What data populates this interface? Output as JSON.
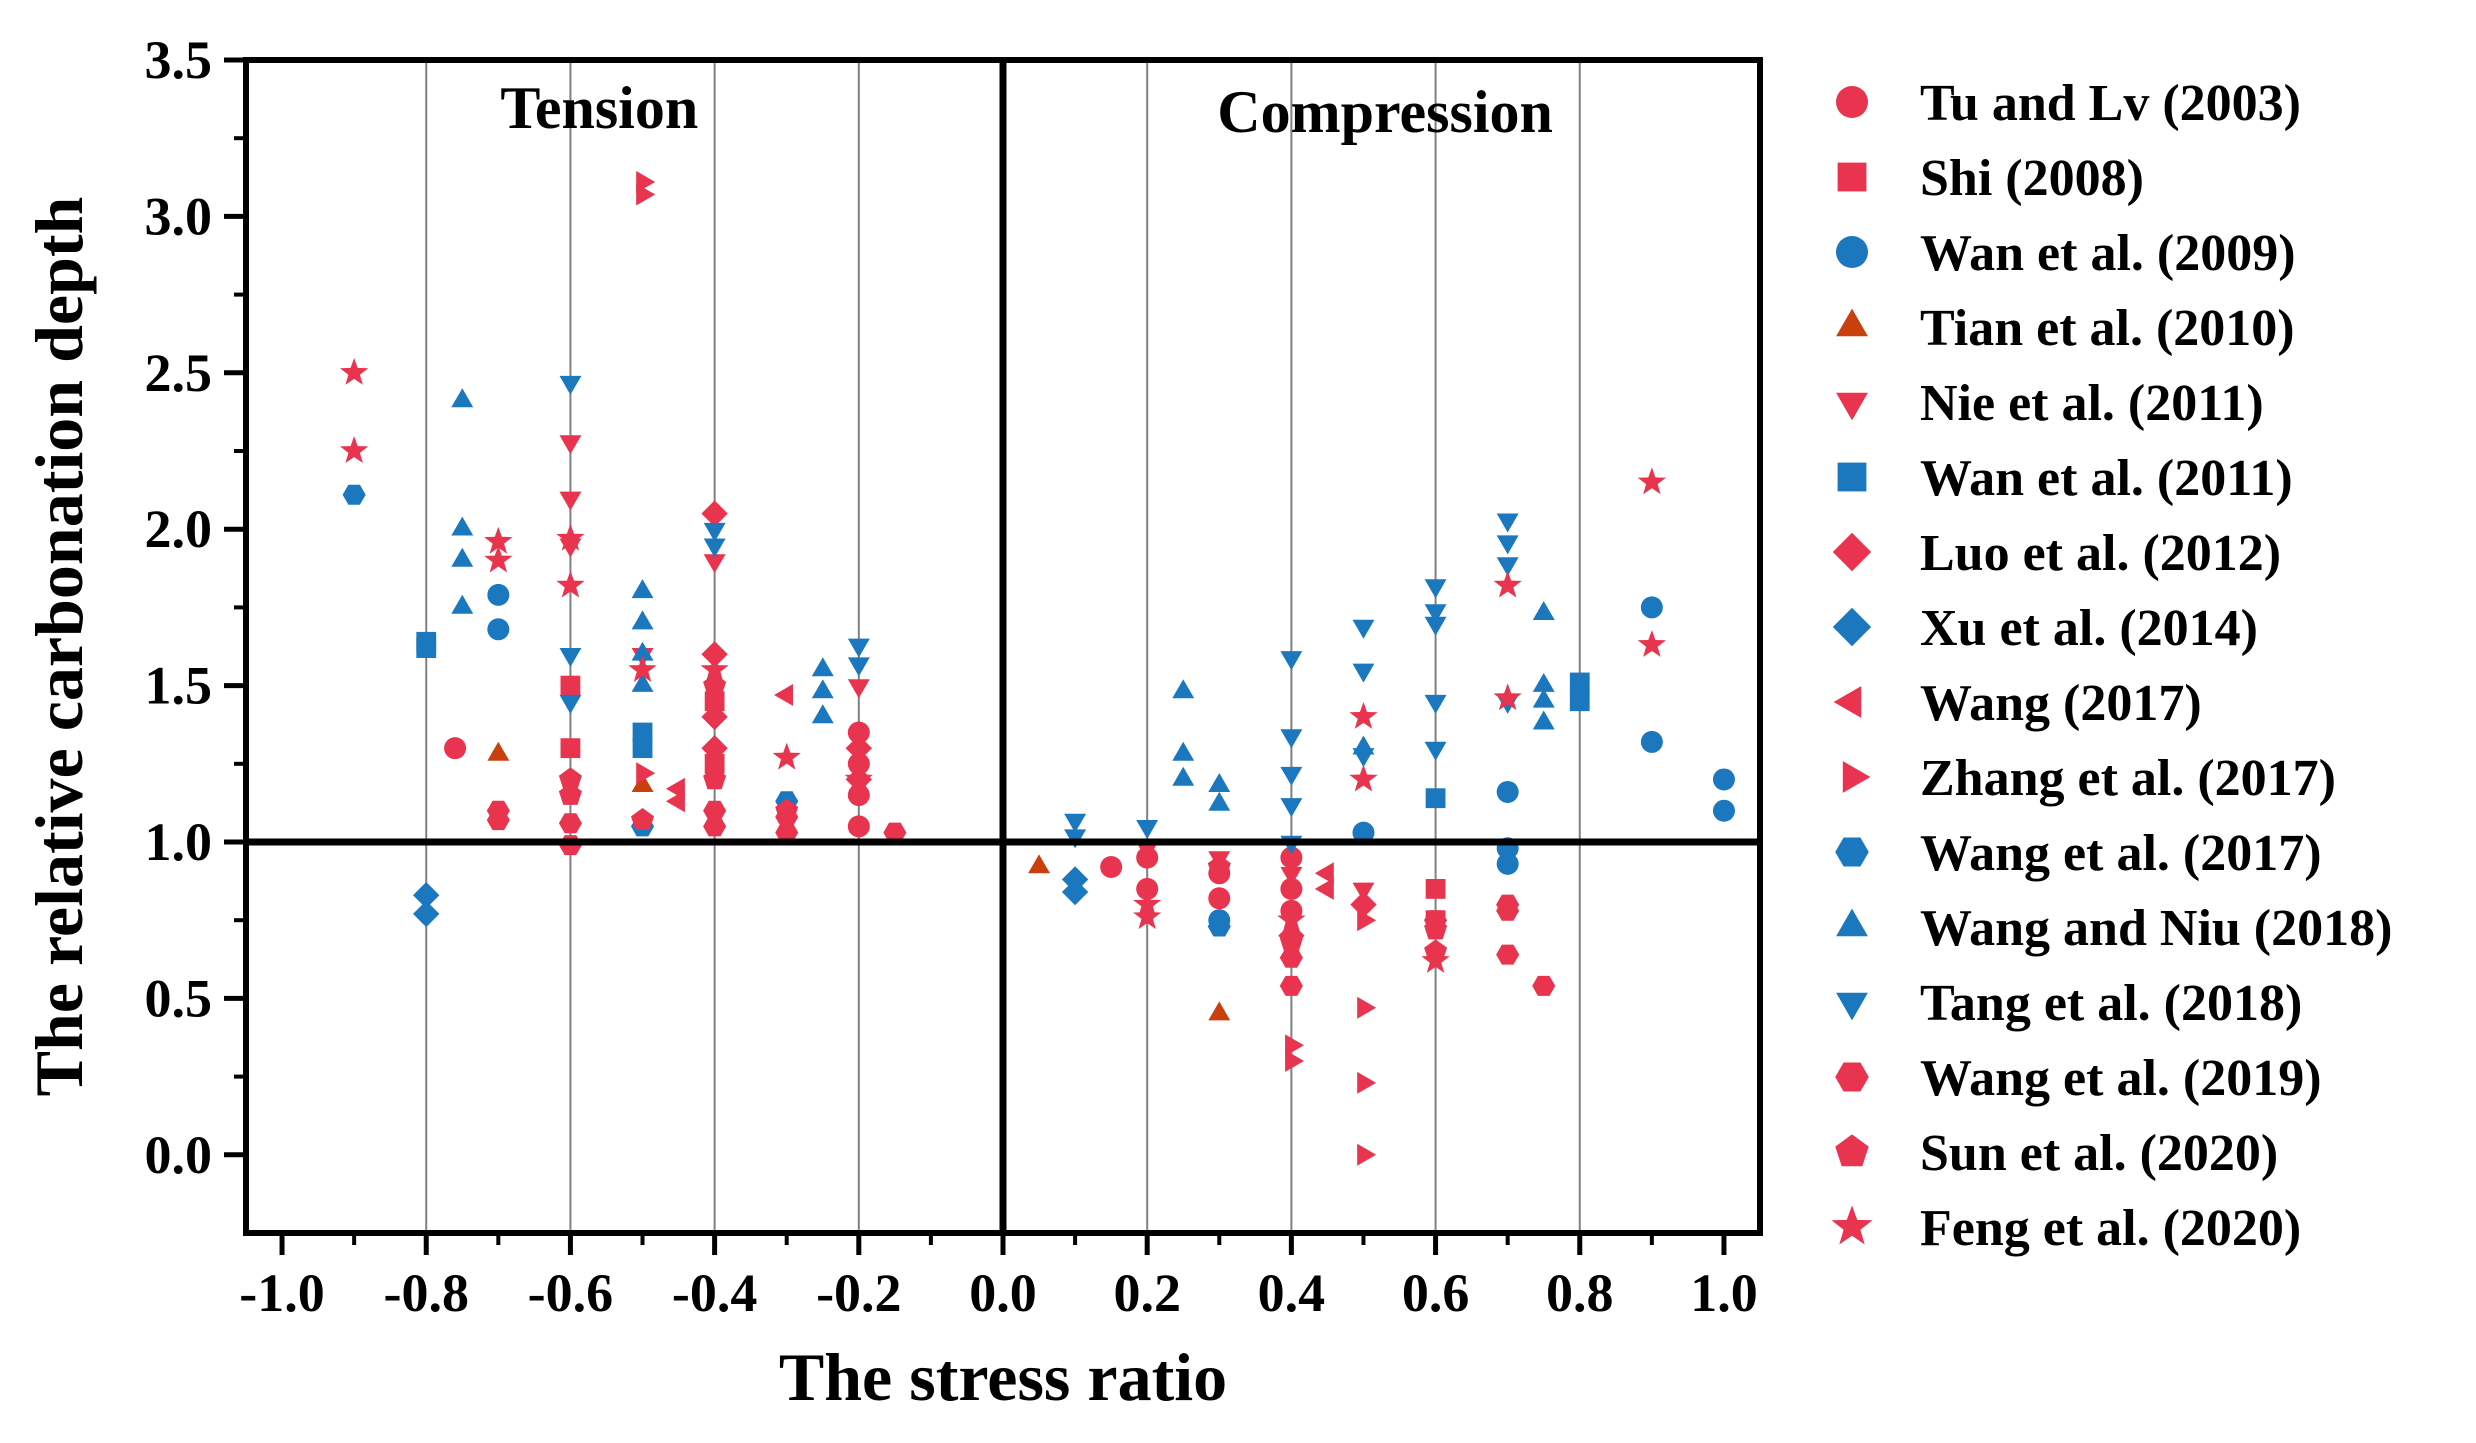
{
  "colors": {
    "red": "#E8344E",
    "blue": "#1B78BF",
    "orange": "#C9400E",
    "axis": "#000000",
    "grid": "#808080"
  },
  "chart_data": {
    "type": "scatter",
    "title": "",
    "xlabel": "The stress ratio",
    "ylabel": "The relative carbonation depth",
    "xlim": [
      -1.05,
      1.05
    ],
    "ylim": [
      -0.25,
      3.5
    ],
    "x_ticks": [
      -1.0,
      -0.8,
      -0.6,
      -0.4,
      -0.2,
      0.0,
      0.2,
      0.4,
      0.6,
      0.8,
      1.0
    ],
    "x_tick_labels": [
      "-1.0",
      "-0.8",
      "-0.6",
      "-0.4",
      "-0.2",
      "0.0",
      "0.2",
      "0.4",
      "0.6",
      "0.8",
      "1.0"
    ],
    "y_ticks": [
      0.0,
      0.5,
      1.0,
      1.5,
      2.0,
      2.5,
      3.0,
      3.5
    ],
    "y_tick_labels": [
      "0.0",
      "0.5",
      "1.0",
      "1.5",
      "2.0",
      "2.5",
      "3.0",
      "3.5"
    ],
    "grid": "vertical lines at x ticks",
    "reference_lines": {
      "x": 0.0,
      "y": 1.0
    },
    "annotations": [
      "Tension",
      "Compression"
    ],
    "legend_position": "right",
    "series": [
      {
        "name": "Tu and Lv (2003)",
        "marker": "circle",
        "color": "#E8344E",
        "points": [
          [
            -0.76,
            1.3
          ],
          [
            -0.2,
            1.35
          ],
          [
            -0.2,
            1.25
          ],
          [
            -0.2,
            1.15
          ],
          [
            -0.2,
            1.05
          ],
          [
            0.15,
            0.92
          ],
          [
            0.2,
            0.95
          ],
          [
            0.2,
            0.85
          ],
          [
            0.3,
            0.9
          ],
          [
            0.3,
            0.82
          ],
          [
            0.4,
            0.95
          ],
          [
            0.4,
            0.85
          ],
          [
            0.4,
            0.78
          ]
        ]
      },
      {
        "name": "Shi (2008)",
        "marker": "square",
        "color": "#E8344E",
        "points": [
          [
            -0.6,
            1.5
          ],
          [
            -0.6,
            1.3
          ],
          [
            -0.4,
            1.45
          ],
          [
            -0.4,
            1.25
          ],
          [
            0.6,
            0.85
          ],
          [
            0.6,
            0.75
          ]
        ]
      },
      {
        "name": "Wan et al. (2009)",
        "marker": "circle",
        "color": "#1B78BF",
        "points": [
          [
            -0.7,
            1.79
          ],
          [
            -0.7,
            1.68
          ],
          [
            0.3,
            0.75
          ],
          [
            0.5,
            1.03
          ],
          [
            0.7,
            1.16
          ],
          [
            0.7,
            0.98
          ],
          [
            0.7,
            0.93
          ],
          [
            0.9,
            1.75
          ],
          [
            0.9,
            1.32
          ],
          [
            1.0,
            1.2
          ],
          [
            1.0,
            1.1
          ]
        ]
      },
      {
        "name": "Tian et al. (2010)",
        "marker": "triangle-up",
        "color": "#C9400E",
        "points": [
          [
            -0.7,
            1.28
          ],
          [
            -0.5,
            1.18
          ],
          [
            0.05,
            0.92
          ],
          [
            0.3,
            0.45
          ]
        ]
      },
      {
        "name": "Nie et al. (2011)",
        "marker": "triangle-down",
        "color": "#E8344E",
        "points": [
          [
            -0.6,
            2.28
          ],
          [
            -0.6,
            2.1
          ],
          [
            -0.6,
            1.95
          ],
          [
            -0.5,
            1.6
          ],
          [
            -0.4,
            1.9
          ],
          [
            -0.2,
            1.5
          ],
          [
            0.2,
            0.98
          ],
          [
            0.3,
            0.95
          ],
          [
            0.4,
            0.9
          ],
          [
            0.5,
            0.85
          ]
        ]
      },
      {
        "name": "Wan et al. (2011)",
        "marker": "square",
        "color": "#1B78BF",
        "points": [
          [
            -0.8,
            1.64
          ],
          [
            -0.8,
            1.62
          ],
          [
            -0.5,
            1.35
          ],
          [
            -0.5,
            1.3
          ],
          [
            0.6,
            1.14
          ],
          [
            0.8,
            1.51
          ],
          [
            0.8,
            1.45
          ]
        ]
      },
      {
        "name": "Luo et al. (2012)",
        "marker": "diamond",
        "color": "#E8344E",
        "points": [
          [
            -0.4,
            2.05
          ],
          [
            -0.4,
            1.6
          ],
          [
            -0.4,
            1.4
          ],
          [
            -0.4,
            1.3
          ],
          [
            -0.2,
            1.3
          ],
          [
            -0.2,
            1.2
          ],
          [
            0.4,
            0.7
          ],
          [
            0.5,
            0.8
          ]
        ]
      },
      {
        "name": "Xu et al. (2014)",
        "marker": "diamond",
        "color": "#1B78BF",
        "points": [
          [
            -0.8,
            0.83
          ],
          [
            -0.8,
            0.77
          ],
          [
            0.1,
            0.88
          ],
          [
            0.1,
            0.84
          ]
        ]
      },
      {
        "name": "Wang (2017)",
        "marker": "triangle-left",
        "color": "#E8344E",
        "points": [
          [
            -0.45,
            1.17
          ],
          [
            -0.45,
            1.13
          ],
          [
            -0.3,
            1.47
          ],
          [
            0.45,
            0.9
          ],
          [
            0.45,
            0.85
          ]
        ]
      },
      {
        "name": "Zhang et al. (2017)",
        "marker": "triangle-right",
        "color": "#E8344E",
        "points": [
          [
            -0.5,
            3.11
          ],
          [
            -0.5,
            3.07
          ],
          [
            -0.5,
            1.22
          ],
          [
            0.4,
            0.35
          ],
          [
            0.4,
            0.3
          ],
          [
            0.5,
            0.47
          ],
          [
            0.5,
            0.23
          ],
          [
            0.5,
            0.0
          ],
          [
            0.5,
            0.75
          ]
        ]
      },
      {
        "name": "Wang et al. (2017)",
        "marker": "hexagon",
        "color": "#1B78BF",
        "points": [
          [
            -0.9,
            2.11
          ],
          [
            -0.5,
            1.05
          ],
          [
            -0.3,
            1.13
          ],
          [
            0.3,
            0.73
          ]
        ]
      },
      {
        "name": "Wang and Niu (2018)",
        "marker": "triangle-up",
        "color": "#1B78BF",
        "points": [
          [
            -0.75,
            2.41
          ],
          [
            -0.75,
            2.0
          ],
          [
            -0.75,
            1.9
          ],
          [
            -0.75,
            1.75
          ],
          [
            -0.5,
            1.8
          ],
          [
            -0.5,
            1.7
          ],
          [
            -0.5,
            1.6
          ],
          [
            -0.5,
            1.5
          ],
          [
            -0.25,
            1.55
          ],
          [
            -0.25,
            1.48
          ],
          [
            -0.25,
            1.4
          ],
          [
            0.25,
            1.48
          ],
          [
            0.25,
            1.28
          ],
          [
            0.25,
            1.2
          ],
          [
            0.3,
            1.18
          ],
          [
            0.3,
            1.12
          ],
          [
            0.5,
            1.3
          ],
          [
            0.75,
            1.73
          ],
          [
            0.75,
            1.5
          ],
          [
            0.75,
            1.45
          ],
          [
            0.75,
            1.38
          ]
        ]
      },
      {
        "name": "Tang et al. (2018)",
        "marker": "triangle-down",
        "color": "#1B78BF",
        "points": [
          [
            -0.6,
            2.47
          ],
          [
            -0.6,
            1.6
          ],
          [
            -0.6,
            1.45
          ],
          [
            -0.4,
            2.0
          ],
          [
            -0.4,
            1.95
          ],
          [
            -0.2,
            1.63
          ],
          [
            -0.2,
            1.57
          ],
          [
            0.1,
            1.07
          ],
          [
            0.1,
            1.02
          ],
          [
            0.2,
            1.05
          ],
          [
            0.4,
            1.59
          ],
          [
            0.4,
            1.34
          ],
          [
            0.4,
            1.22
          ],
          [
            0.4,
            1.12
          ],
          [
            0.4,
            1.0
          ],
          [
            0.5,
            1.69
          ],
          [
            0.5,
            1.55
          ],
          [
            0.5,
            1.28
          ],
          [
            0.6,
            1.82
          ],
          [
            0.6,
            1.74
          ],
          [
            0.6,
            1.7
          ],
          [
            0.6,
            1.45
          ],
          [
            0.6,
            1.3
          ],
          [
            0.7,
            2.03
          ],
          [
            0.7,
            1.96
          ],
          [
            0.7,
            1.89
          ],
          [
            0.7,
            1.45
          ]
        ]
      },
      {
        "name": "Wang et al. (2019)",
        "marker": "hexagon",
        "color": "#E8344E",
        "points": [
          [
            -0.7,
            1.1
          ],
          [
            -0.7,
            1.07
          ],
          [
            -0.6,
            1.06
          ],
          [
            -0.6,
            0.99
          ],
          [
            -0.4,
            1.1
          ],
          [
            -0.4,
            1.05
          ],
          [
            -0.3,
            1.08
          ],
          [
            -0.3,
            1.03
          ],
          [
            -0.15,
            1.03
          ],
          [
            0.4,
            0.63
          ],
          [
            0.4,
            0.54
          ],
          [
            0.6,
            0.75
          ],
          [
            0.7,
            0.8
          ],
          [
            0.7,
            0.78
          ],
          [
            0.7,
            0.64
          ],
          [
            0.75,
            0.54
          ]
        ]
      },
      {
        "name": "Sun et al. (2020)",
        "marker": "pentagon",
        "color": "#E8344E",
        "points": [
          [
            -0.6,
            1.2
          ],
          [
            -0.6,
            1.15
          ],
          [
            -0.5,
            1.07
          ],
          [
            -0.4,
            1.5
          ],
          [
            -0.4,
            1.2
          ],
          [
            -0.3,
            1.1
          ],
          [
            0.3,
            0.92
          ],
          [
            0.4,
            0.68
          ],
          [
            0.6,
            0.72
          ],
          [
            0.6,
            0.65
          ]
        ]
      },
      {
        "name": "Feng et al. (2020)",
        "marker": "star",
        "color": "#E8344E",
        "points": [
          [
            -0.9,
            2.5
          ],
          [
            -0.9,
            2.25
          ],
          [
            -0.7,
            1.96
          ],
          [
            -0.7,
            1.9
          ],
          [
            -0.6,
            1.97
          ],
          [
            -0.6,
            1.82
          ],
          [
            -0.5,
            1.55
          ],
          [
            -0.4,
            1.55
          ],
          [
            -0.3,
            1.27
          ],
          [
            -0.2,
            1.2
          ],
          [
            0.2,
            0.8
          ],
          [
            0.2,
            0.76
          ],
          [
            0.4,
            0.75
          ],
          [
            0.5,
            1.4
          ],
          [
            0.5,
            1.2
          ],
          [
            0.6,
            0.62
          ],
          [
            0.7,
            1.82
          ],
          [
            0.7,
            1.46
          ],
          [
            0.9,
            2.15
          ],
          [
            0.9,
            1.63
          ]
        ]
      }
    ]
  }
}
